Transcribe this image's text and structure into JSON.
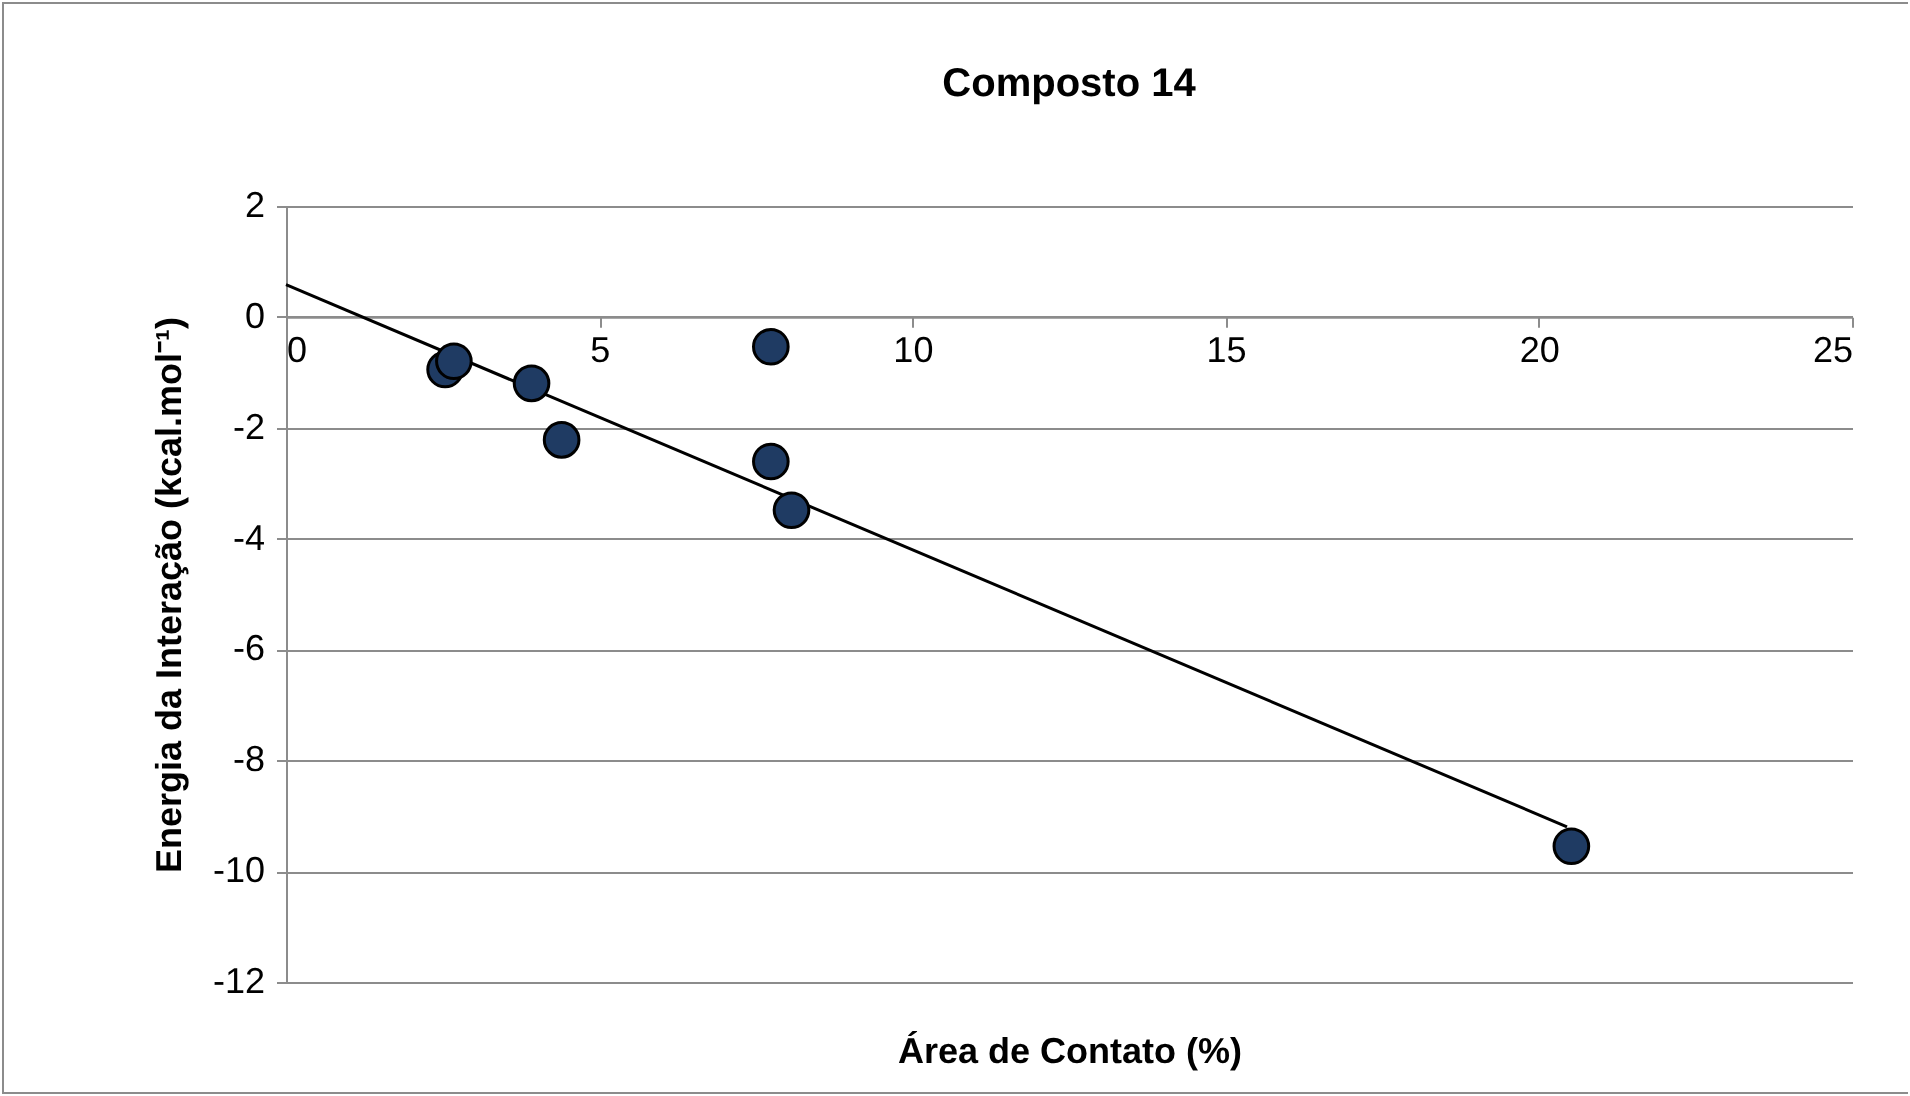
{
  "chart_data": {
    "type": "scatter",
    "title": "Composto 14",
    "xlabel": "Área de Contato (%)",
    "ylabel": "Energia da Interação (kcal.mol⁻¹)",
    "xlim": [
      0,
      25
    ],
    "xticks": [
      0,
      5,
      10,
      15,
      20,
      25
    ],
    "ylim": [
      -12,
      2
    ],
    "yticks": [
      -12,
      -10,
      -8,
      -6,
      -4,
      -2,
      0,
      2
    ],
    "grid": "y",
    "marker": "circle",
    "series": [
      {
        "color": "#1f3b63",
        "x": [
          2.54,
          2.68,
          3.92,
          4.4,
          7.74,
          7.74,
          8.07,
          20.52
        ],
        "values": [
          -0.95,
          -0.8,
          -1.2,
          -2.22,
          -0.54,
          -2.61,
          -3.49,
          -9.55
        ]
      },
      {
        "type": "line",
        "color": "#000000",
        "marker": "none",
        "x": [
          0,
          20.45
        ],
        "values": [
          0.58,
          -9.2
        ]
      }
    ]
  }
}
